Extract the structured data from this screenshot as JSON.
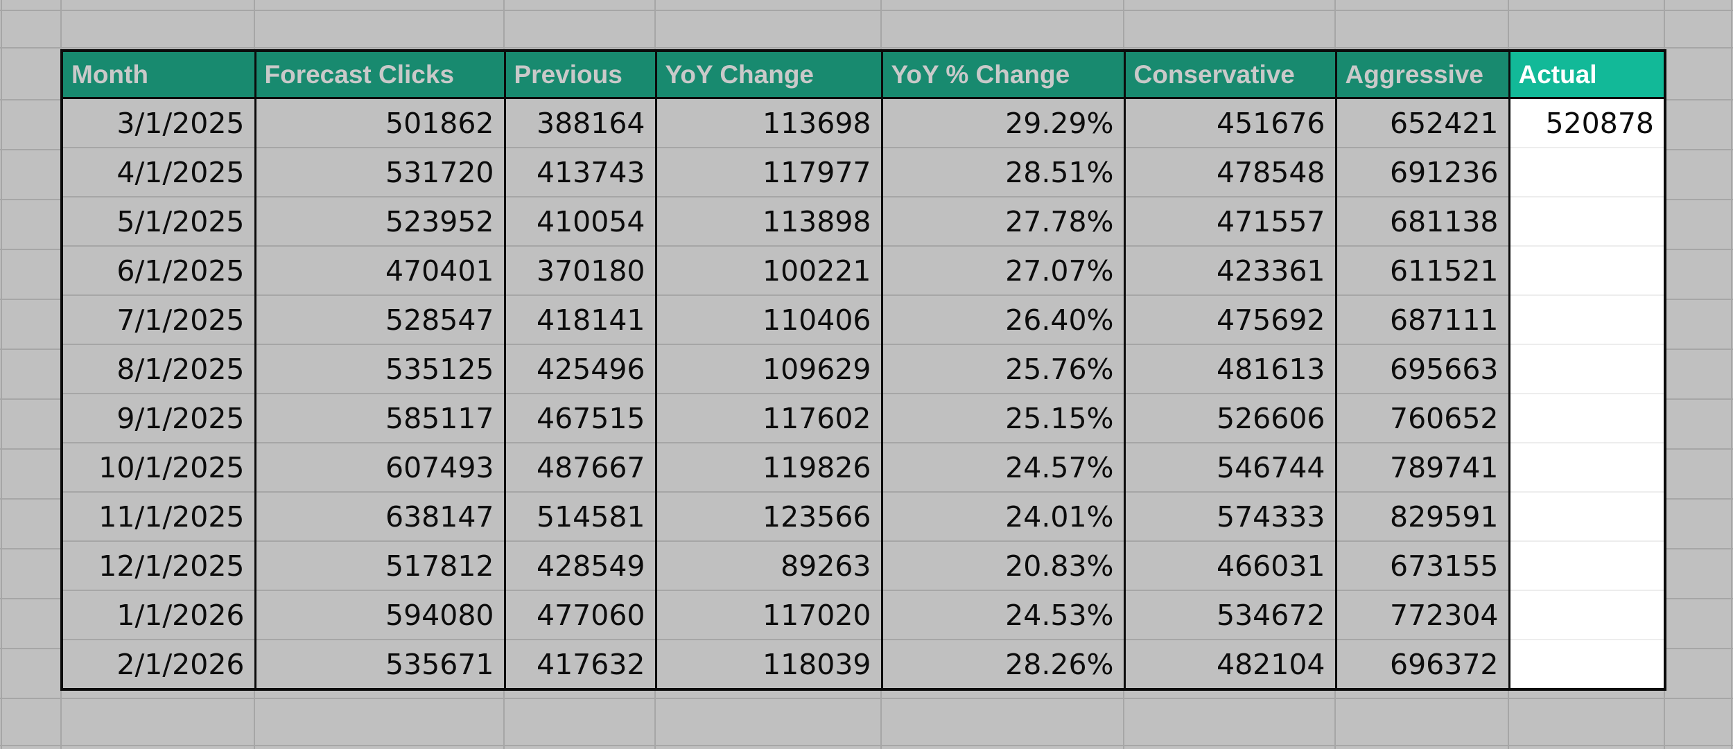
{
  "sheet": {
    "background_color": "#c0c0c0",
    "gridline_color": "#a6a6a6",
    "border_color": "#0b0b0b"
  },
  "table": {
    "header": {
      "bg": "#188a6f",
      "accent_bg": "#12b998",
      "text_color": "#c9c9c9",
      "accent_text_color": "#ffffff",
      "columns": [
        {
          "label": "Month",
          "accent": false
        },
        {
          "label": "Forecast Clicks",
          "accent": false
        },
        {
          "label": "Previous",
          "accent": false
        },
        {
          "label": "YoY Change",
          "accent": false
        },
        {
          "label": "YoY % Change",
          "accent": false
        },
        {
          "label": "Conservative",
          "accent": false
        },
        {
          "label": "Aggressive",
          "accent": false
        },
        {
          "label": "Actual",
          "accent": true
        }
      ]
    },
    "rows": [
      [
        "3/1/2025",
        "501862",
        "388164",
        "113698",
        "29.29%",
        "451676",
        "652421",
        "520878"
      ],
      [
        "4/1/2025",
        "531720",
        "413743",
        "117977",
        "28.51%",
        "478548",
        "691236",
        ""
      ],
      [
        "5/1/2025",
        "523952",
        "410054",
        "113898",
        "27.78%",
        "471557",
        "681138",
        ""
      ],
      [
        "6/1/2025",
        "470401",
        "370180",
        "100221",
        "27.07%",
        "423361",
        "611521",
        ""
      ],
      [
        "7/1/2025",
        "528547",
        "418141",
        "110406",
        "26.40%",
        "475692",
        "687111",
        ""
      ],
      [
        "8/1/2025",
        "535125",
        "425496",
        "109629",
        "25.76%",
        "481613",
        "695663",
        ""
      ],
      [
        "9/1/2025",
        "585117",
        "467515",
        "117602",
        "25.15%",
        "526606",
        "760652",
        ""
      ],
      [
        "10/1/2025",
        "607493",
        "487667",
        "119826",
        "24.57%",
        "546744",
        "789741",
        ""
      ],
      [
        "11/1/2025",
        "638147",
        "514581",
        "123566",
        "24.01%",
        "574333",
        "829591",
        ""
      ],
      [
        "12/1/2025",
        "517812",
        "428549",
        "89263",
        "20.83%",
        "466031",
        "673155",
        ""
      ],
      [
        "1/1/2026",
        "594080",
        "477060",
        "117020",
        "24.53%",
        "534672",
        "772304",
        ""
      ],
      [
        "2/1/2026",
        "535671",
        "417632",
        "118039",
        "28.26%",
        "482104",
        "696372",
        ""
      ]
    ]
  }
}
